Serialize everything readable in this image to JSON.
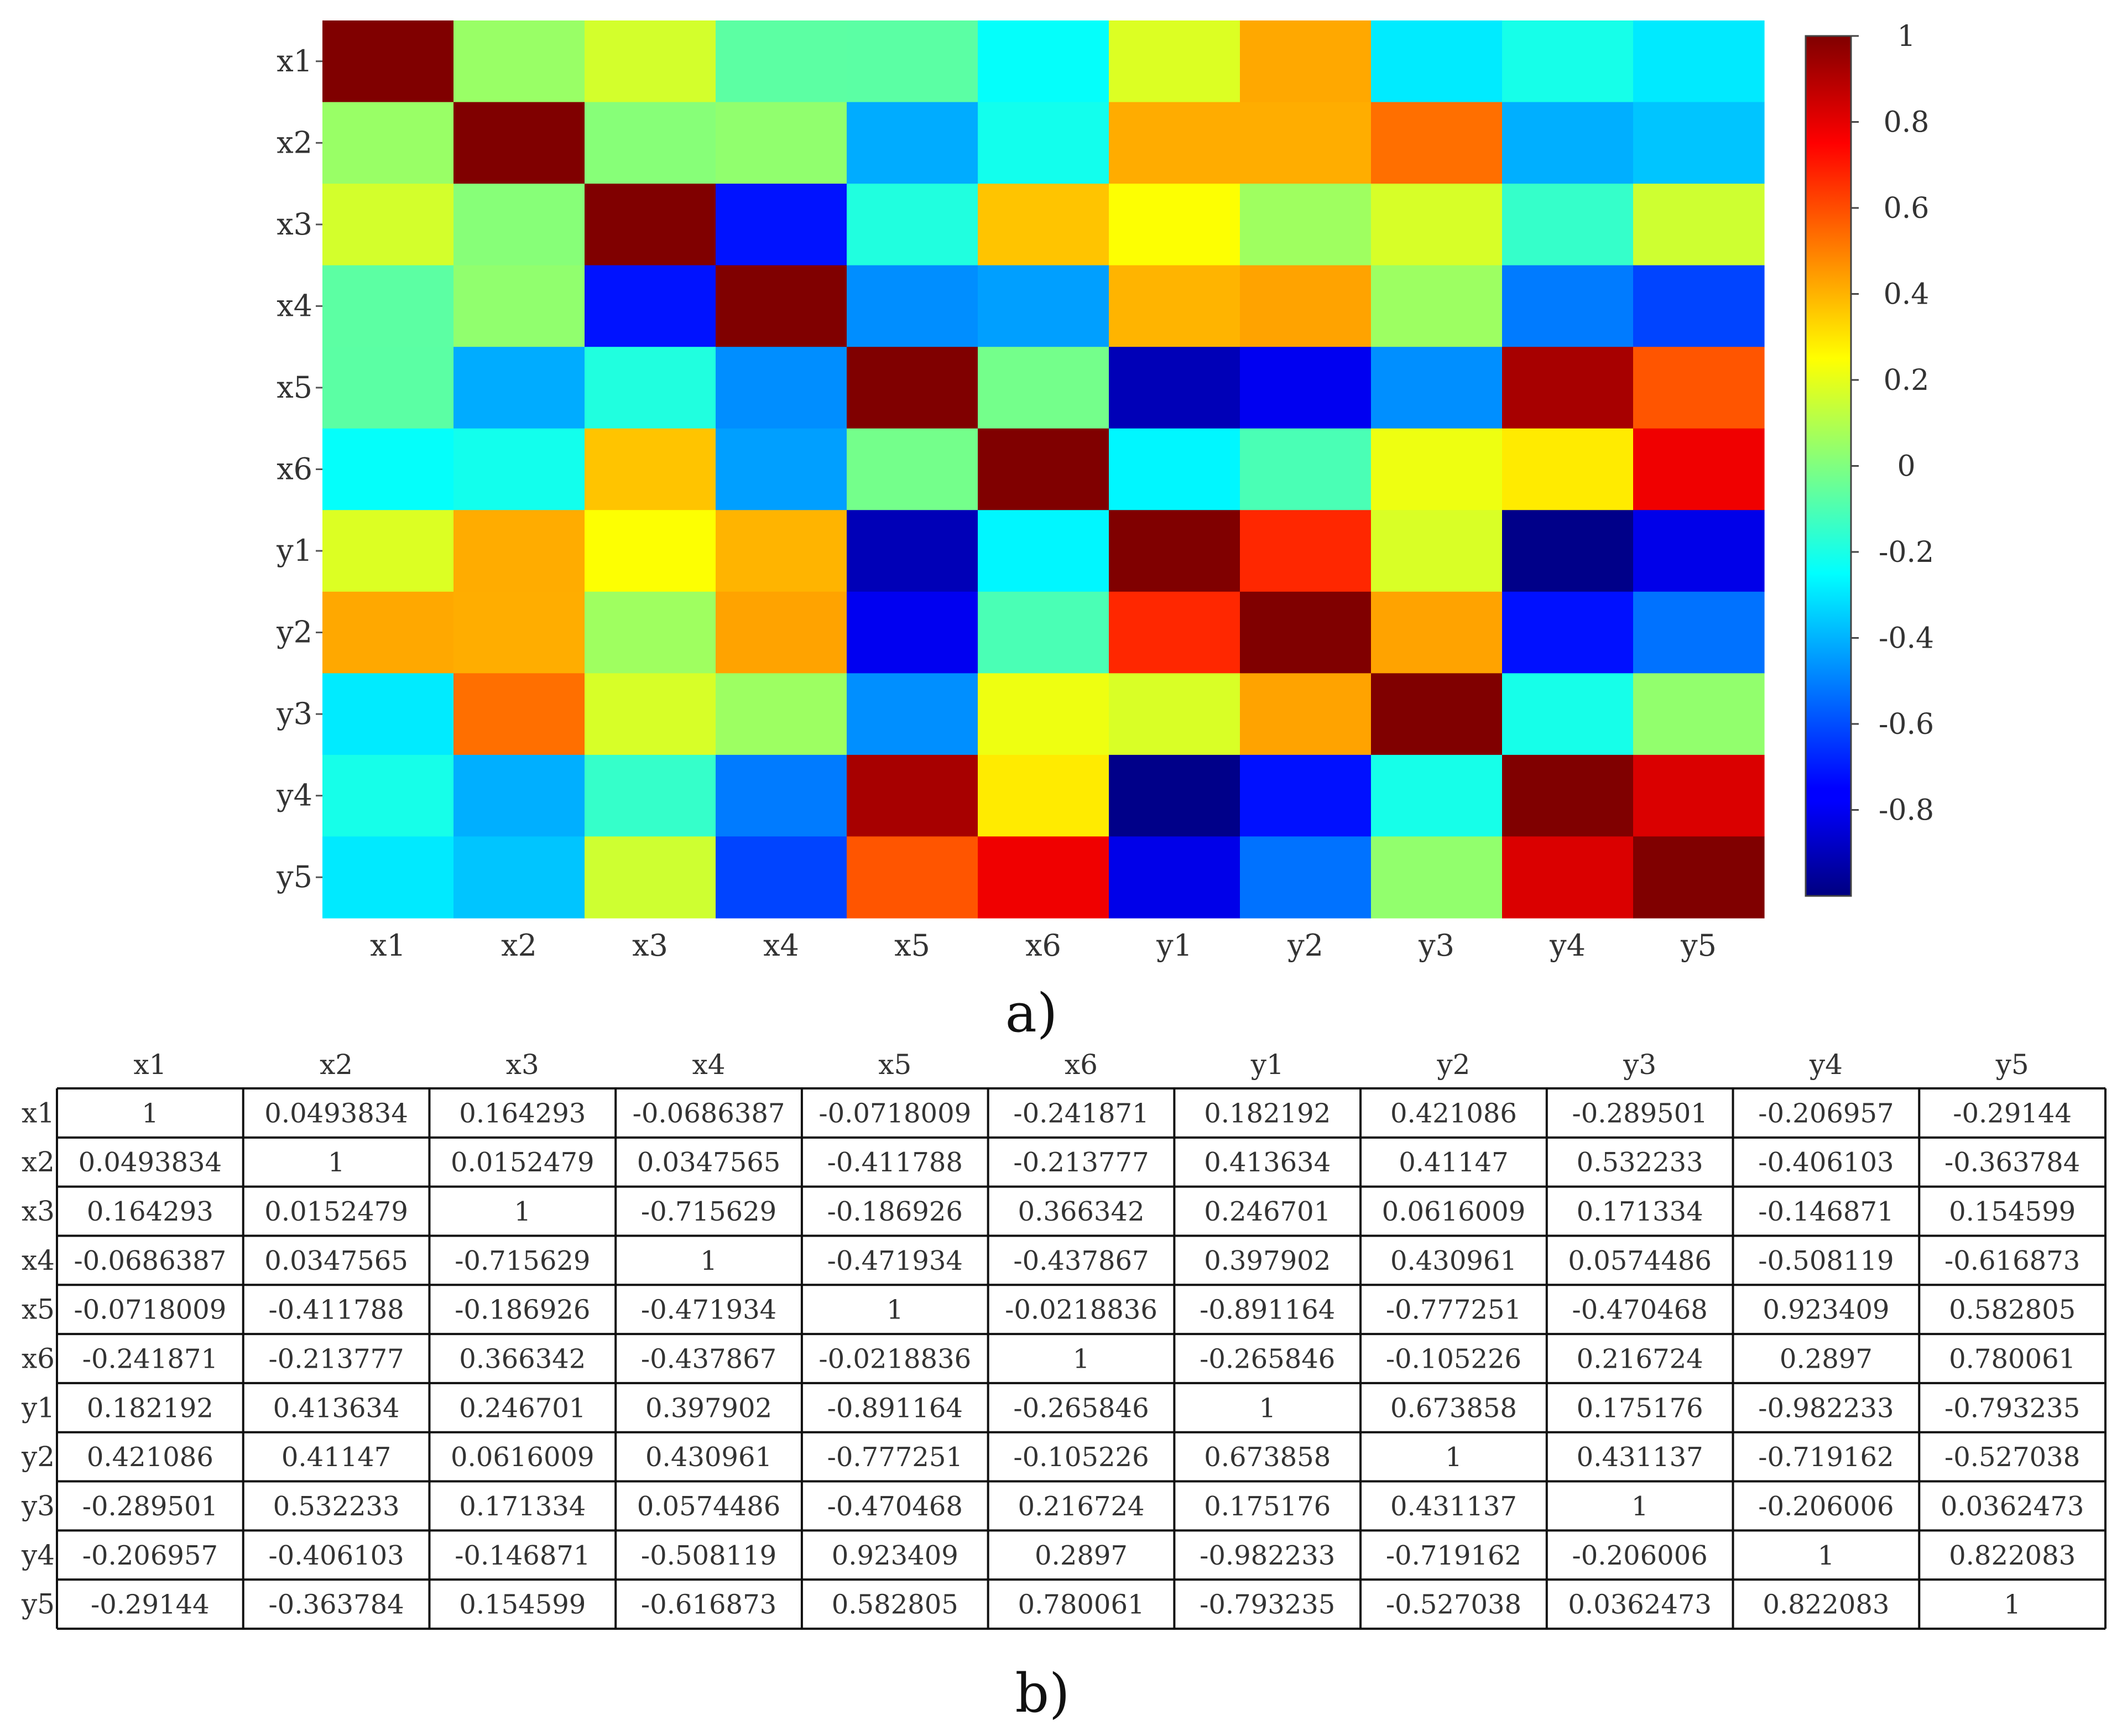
{
  "chart_data": [
    {
      "type": "heatmap",
      "title": "",
      "xlabel": "",
      "ylabel": "",
      "x_categories": [
        "x1",
        "x2",
        "x3",
        "x4",
        "x5",
        "x6",
        "y1",
        "y2",
        "y3",
        "y4",
        "y5"
      ],
      "y_categories": [
        "x1",
        "x2",
        "x3",
        "x4",
        "x5",
        "x6",
        "y1",
        "y2",
        "y3",
        "y4",
        "y5"
      ],
      "values": [
        [
          1,
          0.0493834,
          0.164293,
          -0.0686387,
          -0.0718009,
          -0.241871,
          0.182192,
          0.421086,
          -0.289501,
          -0.206957,
          -0.29144
        ],
        [
          0.0493834,
          1,
          0.0152479,
          0.0347565,
          -0.411788,
          -0.213777,
          0.413634,
          0.41147,
          0.532233,
          -0.406103,
          -0.363784
        ],
        [
          0.164293,
          0.0152479,
          1,
          -0.715629,
          -0.186926,
          0.366342,
          0.246701,
          0.0616009,
          0.171334,
          -0.146871,
          0.154599
        ],
        [
          -0.0686387,
          0.0347565,
          -0.715629,
          1,
          -0.471934,
          -0.437867,
          0.397902,
          0.430961,
          0.0574486,
          -0.508119,
          -0.616873
        ],
        [
          -0.0718009,
          -0.411788,
          -0.186926,
          -0.471934,
          1,
          -0.0218836,
          -0.891164,
          -0.777251,
          -0.470468,
          0.923409,
          0.582805
        ],
        [
          -0.241871,
          -0.213777,
          0.366342,
          -0.437867,
          -0.0218836,
          1,
          -0.265846,
          -0.105226,
          0.216724,
          0.2897,
          0.780061
        ],
        [
          0.182192,
          0.413634,
          0.246701,
          0.397902,
          -0.891164,
          -0.265846,
          1,
          0.673858,
          0.175176,
          -0.982233,
          -0.793235
        ],
        [
          0.421086,
          0.41147,
          0.0616009,
          0.430961,
          -0.777251,
          -0.105226,
          0.673858,
          1,
          0.431137,
          -0.719162,
          -0.527038
        ],
        [
          -0.289501,
          0.532233,
          0.171334,
          0.0574486,
          -0.470468,
          0.216724,
          0.175176,
          0.431137,
          1,
          -0.206006,
          0.0362473
        ],
        [
          -0.206957,
          -0.406103,
          -0.146871,
          -0.508119,
          0.923409,
          0.2897,
          -0.982233,
          -0.719162,
          -0.206006,
          1,
          0.822083
        ],
        [
          -0.29144,
          -0.363784,
          0.154599,
          -0.616873,
          0.582805,
          0.780061,
          -0.793235,
          -0.527038,
          0.0362473,
          0.822083,
          1
        ]
      ],
      "colorbar": {
        "range": [
          -1,
          1
        ],
        "tick_values": [
          1,
          0.8,
          0.6,
          0.4,
          0.2,
          0,
          -0.2,
          -0.4,
          -0.6,
          -0.8
        ],
        "tick_labels": [
          "1",
          "0.8",
          "0.6",
          "0.4",
          "0.2",
          "0",
          "-0.2",
          "-0.4",
          "-0.6",
          "-0.8"
        ],
        "colormap": "jet"
      },
      "caption": "a)"
    },
    {
      "type": "table",
      "columns": [
        "x1",
        "x2",
        "x3",
        "x4",
        "x5",
        "x6",
        "y1",
        "y2",
        "y3",
        "y4",
        "y5"
      ],
      "row_labels": [
        "x1",
        "x2",
        "x3",
        "x4",
        "x5",
        "x6",
        "y1",
        "y2",
        "y3",
        "y4",
        "y5"
      ],
      "rows": [
        [
          "1",
          "0.0493834",
          "0.164293",
          "-0.0686387",
          "-0.0718009",
          "-0.241871",
          "0.182192",
          "0.421086",
          "-0.289501",
          "-0.206957",
          "-0.29144"
        ],
        [
          "0.0493834",
          "1",
          "0.0152479",
          "0.0347565",
          "-0.411788",
          "-0.213777",
          "0.413634",
          "0.41147",
          "0.532233",
          "-0.406103",
          "-0.363784"
        ],
        [
          "0.164293",
          "0.0152479",
          "1",
          "-0.715629",
          "-0.186926",
          "0.366342",
          "0.246701",
          "0.0616009",
          "0.171334",
          "-0.146871",
          "0.154599"
        ],
        [
          "-0.0686387",
          "0.0347565",
          "-0.715629",
          "1",
          "-0.471934",
          "-0.437867",
          "0.397902",
          "0.430961",
          "0.0574486",
          "-0.508119",
          "-0.616873"
        ],
        [
          "-0.0718009",
          "-0.411788",
          "-0.186926",
          "-0.471934",
          "1",
          "-0.0218836",
          "-0.891164",
          "-0.777251",
          "-0.470468",
          "0.923409",
          "0.582805"
        ],
        [
          "-0.241871",
          "-0.213777",
          "0.366342",
          "-0.437867",
          "-0.0218836",
          "1",
          "-0.265846",
          "-0.105226",
          "0.216724",
          "0.2897",
          "0.780061"
        ],
        [
          "0.182192",
          "0.413634",
          "0.246701",
          "0.397902",
          "-0.891164",
          "-0.265846",
          "1",
          "0.673858",
          "0.175176",
          "-0.982233",
          "-0.793235"
        ],
        [
          "0.421086",
          "0.41147",
          "0.0616009",
          "0.430961",
          "-0.777251",
          "-0.105226",
          "0.673858",
          "1",
          "0.431137",
          "-0.719162",
          "-0.527038"
        ],
        [
          "-0.289501",
          "0.532233",
          "0.171334",
          "0.0574486",
          "-0.470468",
          "0.216724",
          "0.175176",
          "0.431137",
          "1",
          "-0.206006",
          "0.0362473"
        ],
        [
          "-0.206957",
          "-0.406103",
          "-0.146871",
          "-0.508119",
          "0.923409",
          "0.2897",
          "-0.982233",
          "-0.719162",
          "-0.206006",
          "1",
          "0.822083"
        ],
        [
          "-0.29144",
          "-0.363784",
          "0.154599",
          "-0.616873",
          "0.582805",
          "0.780061",
          "-0.793235",
          "-0.527038",
          "0.0362473",
          "0.822083",
          "1"
        ]
      ],
      "caption": "b)"
    }
  ]
}
